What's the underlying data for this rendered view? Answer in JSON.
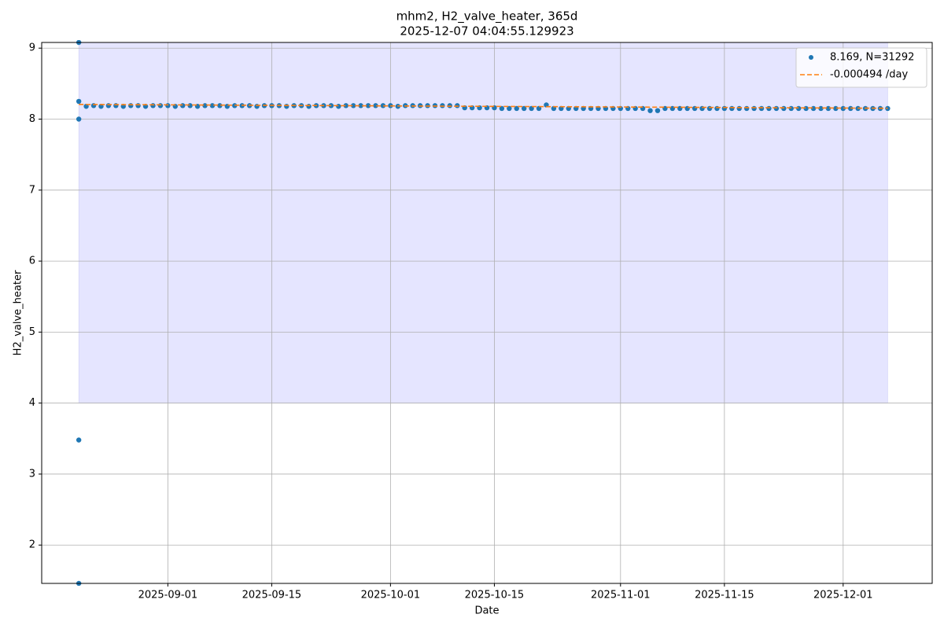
{
  "chart_data": {
    "type": "scatter",
    "title": "mhm2, H2_valve_heater, 365d",
    "subtitle": "2025-12-07 04:04:55.129923",
    "x_label": "Date",
    "y_label": "H2_valve_heater",
    "xlim": [
      "2025-08-15",
      "2025-12-13"
    ],
    "ylim": [
      1.46,
      9.08
    ],
    "xticks": [
      "2025-09-01",
      "2025-09-15",
      "2025-10-01",
      "2025-10-15",
      "2025-11-01",
      "2025-11-15",
      "2025-12-01"
    ],
    "yticks": [
      2,
      3,
      4,
      5,
      6,
      7,
      8,
      9
    ],
    "grid": true,
    "legend": "upper right",
    "shaded_region": {
      "x": [
        "2025-08-20",
        "2025-12-07"
      ],
      "y": [
        4,
        9.08
      ],
      "color": "#e5e5ff"
    },
    "series": [
      {
        "name": "8.169, N=31292",
        "color": "#1f77b4",
        "kind": "scatter",
        "x": [
          "2025-08-20",
          "2025-08-20",
          "2025-08-20",
          "2025-08-20",
          "2025-08-20",
          "2025-08-21",
          "2025-08-22",
          "2025-08-23",
          "2025-08-24",
          "2025-08-25",
          "2025-08-26",
          "2025-08-27",
          "2025-08-28",
          "2025-08-29",
          "2025-08-30",
          "2025-08-31",
          "2025-09-01",
          "2025-09-02",
          "2025-09-03",
          "2025-09-04",
          "2025-09-05",
          "2025-09-06",
          "2025-09-07",
          "2025-09-08",
          "2025-09-09",
          "2025-09-10",
          "2025-09-11",
          "2025-09-12",
          "2025-09-13",
          "2025-09-14",
          "2025-09-15",
          "2025-09-16",
          "2025-09-17",
          "2025-09-18",
          "2025-09-19",
          "2025-09-20",
          "2025-09-21",
          "2025-09-22",
          "2025-09-23",
          "2025-09-24",
          "2025-09-25",
          "2025-09-26",
          "2025-09-27",
          "2025-09-28",
          "2025-09-29",
          "2025-09-30",
          "2025-10-01",
          "2025-10-02",
          "2025-10-03",
          "2025-10-04",
          "2025-10-05",
          "2025-10-06",
          "2025-10-07",
          "2025-10-08",
          "2025-10-09",
          "2025-10-10",
          "2025-10-11",
          "2025-10-12",
          "2025-10-13",
          "2025-10-14",
          "2025-10-15",
          "2025-10-16",
          "2025-10-17",
          "2025-10-18",
          "2025-10-19",
          "2025-10-20",
          "2025-10-21",
          "2025-10-22",
          "2025-10-23",
          "2025-10-24",
          "2025-10-25",
          "2025-10-26",
          "2025-10-27",
          "2025-10-28",
          "2025-10-29",
          "2025-10-30",
          "2025-10-31",
          "2025-11-01",
          "2025-11-02",
          "2025-11-03",
          "2025-11-04",
          "2025-11-05",
          "2025-11-06",
          "2025-11-07",
          "2025-11-08",
          "2025-11-09",
          "2025-11-10",
          "2025-11-11",
          "2025-11-12",
          "2025-11-13",
          "2025-11-14",
          "2025-11-15",
          "2025-11-16",
          "2025-11-17",
          "2025-11-18",
          "2025-11-19",
          "2025-11-20",
          "2025-11-21",
          "2025-11-22",
          "2025-11-23",
          "2025-11-24",
          "2025-11-25",
          "2025-11-26",
          "2025-11-27",
          "2025-11-28",
          "2025-11-29",
          "2025-11-30",
          "2025-12-01",
          "2025-12-02",
          "2025-12-03",
          "2025-12-04",
          "2025-12-05",
          "2025-12-06",
          "2025-12-07"
        ],
        "values": [
          9.08,
          8.25,
          8.0,
          3.48,
          1.46,
          8.18,
          8.19,
          8.18,
          8.19,
          8.19,
          8.18,
          8.19,
          8.19,
          8.18,
          8.19,
          8.19,
          8.19,
          8.18,
          8.19,
          8.19,
          8.18,
          8.19,
          8.19,
          8.19,
          8.18,
          8.19,
          8.19,
          8.19,
          8.18,
          8.19,
          8.19,
          8.19,
          8.18,
          8.19,
          8.19,
          8.18,
          8.19,
          8.19,
          8.19,
          8.18,
          8.19,
          8.19,
          8.19,
          8.19,
          8.19,
          8.19,
          8.19,
          8.18,
          8.19,
          8.19,
          8.19,
          8.19,
          8.19,
          8.19,
          8.19,
          8.19,
          8.16,
          8.16,
          8.16,
          8.16,
          8.16,
          8.15,
          8.15,
          8.15,
          8.15,
          8.15,
          8.15,
          8.2,
          8.15,
          8.15,
          8.15,
          8.15,
          8.15,
          8.15,
          8.15,
          8.15,
          8.15,
          8.15,
          8.15,
          8.15,
          8.15,
          8.12,
          8.12,
          8.15,
          8.15,
          8.15,
          8.15,
          8.15,
          8.15,
          8.15,
          8.15,
          8.15,
          8.15,
          8.15,
          8.15,
          8.15,
          8.15,
          8.15,
          8.15,
          8.15,
          8.15,
          8.15,
          8.15,
          8.15,
          8.15,
          8.15,
          8.15,
          8.15,
          8.15,
          8.15,
          8.15,
          8.15,
          8.15,
          8.15
        ]
      },
      {
        "name": "-0.000494 /day",
        "color": "#ff7f0e",
        "kind": "line",
        "x": [
          "2025-08-20",
          "2025-12-07"
        ],
        "values": [
          8.207,
          8.153
        ]
      }
    ]
  }
}
